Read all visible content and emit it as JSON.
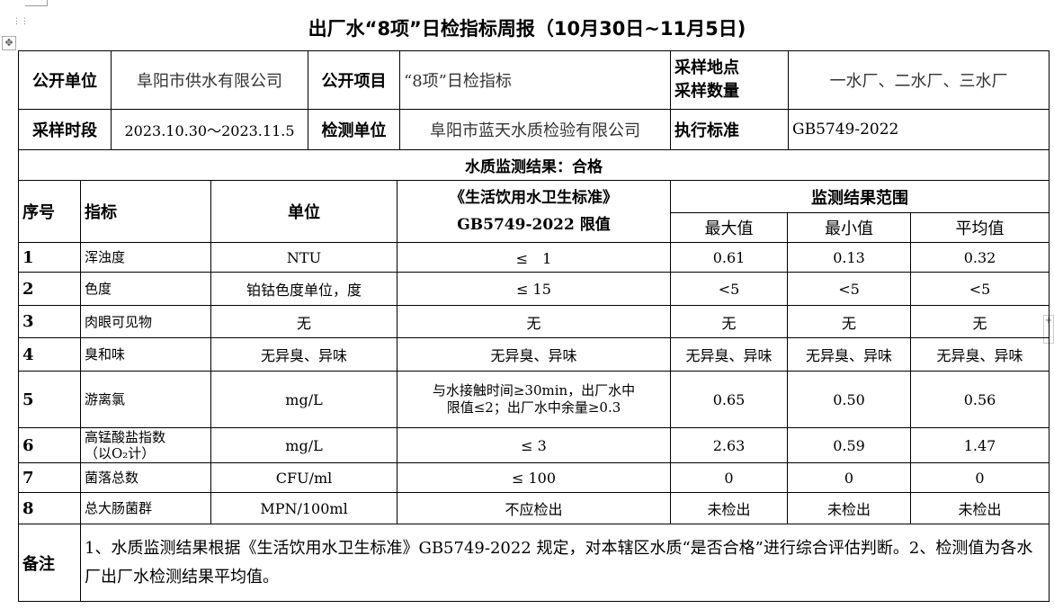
{
  "title": "出厂水“8项”日检指标周报（10月30日~11月5日)",
  "info": {
    "publisher_label": "公开单位",
    "publisher": "阜阳市供水有限公司",
    "item_label": "公开项目",
    "item": "“8项”日检指标",
    "site_label": "采样地点\n采样数量",
    "site": "一水厂、二水厂、三水厂",
    "period_label": "采样时段",
    "period": "2023.10.30～2023.11.5",
    "lab_label": "检测单位",
    "lab": "阜阳市蓝天水质检验有限公司",
    "standard_label": "执行标准",
    "standard": "GB5749-2022",
    "result": "水质监测结果：合格"
  },
  "headers": {
    "seq": "序号",
    "indicator": "指标",
    "unit": "单位",
    "limit": "《生活饮用水卫生标准》\nGB5749-2022 限值",
    "range": "监测结果范围",
    "max": "最大值",
    "min": "最小值",
    "avg": "平均值"
  },
  "rows": [
    {
      "seq": "1",
      "indicator": "浑浊度",
      "unit": "NTU",
      "limit": "≤　1",
      "max": "0.61",
      "min": "0.13",
      "avg": "0.32"
    },
    {
      "seq": "2",
      "indicator": "色度",
      "unit": "铂钴色度单位，度",
      "limit": "≤ 15",
      "max": "<5",
      "min": "<5",
      "avg": "<5"
    },
    {
      "seq": "3",
      "indicator": "肉眼可见物",
      "unit": "无",
      "limit": "无",
      "max": "无",
      "min": "无",
      "avg": "无"
    },
    {
      "seq": "4",
      "indicator": "臭和味",
      "unit": "无异臭、异味",
      "limit": "无异臭、异味",
      "max": "无异臭、异味",
      "min": "无异臭、异味",
      "avg": "无异臭、异味"
    },
    {
      "seq": "5",
      "indicator": "游离氯",
      "unit": "mg/L",
      "limit": "与水接触时间≥30min，出厂水中\n限值≤2；出厂水中余量≥0.3",
      "max": "0.65",
      "min": "0.50",
      "avg": "0.56"
    },
    {
      "seq": "6",
      "indicator": "高锰酸盐指数\n（以O₂计）",
      "unit": "mg/L",
      "limit": "≤ 3",
      "max": "2.63",
      "min": "0.59",
      "avg": "1.47"
    },
    {
      "seq": "7",
      "indicator": "菌落总数",
      "unit": "CFU/ml",
      "limit": "≤ 100",
      "max": "0",
      "min": "0",
      "avg": "0"
    },
    {
      "seq": "8",
      "indicator": "总大肠菌群",
      "unit": "MPN/100ml",
      "limit": "不应检出",
      "max": "未检出",
      "min": "未检出",
      "avg": "未检出"
    }
  ],
  "remark_label": "备注",
  "remark": "1、水质监测结果根据《生活饮用水卫生标准》GB5749-2022 规定，对本辖区水质“是否合格”进行综合评估判断。2、检测值为各水厂出厂水检测结果平均值。"
}
